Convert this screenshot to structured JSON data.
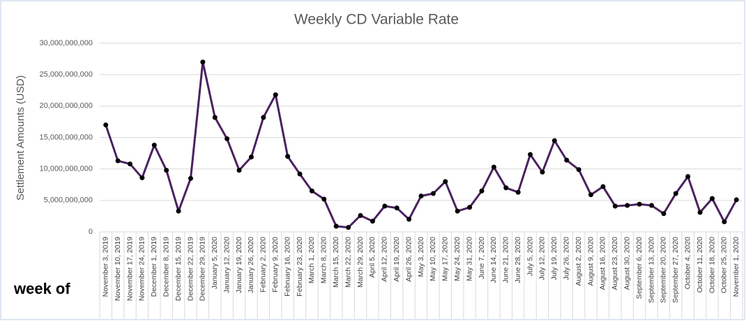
{
  "chart_data": {
    "type": "line",
    "title": "Weekly CD Variable Rate",
    "y_label": "Settlement Amounts (USD)",
    "annotation": "week of",
    "categories": [
      "November 3, 2019",
      "November 10, 2019",
      "November 17, 2019",
      "November 24, 2019",
      "December 1, 2019",
      "December 8, 2019",
      "December 15, 2019",
      "December 22, 2019",
      "December 29, 2019",
      "January 5, 2020",
      "January 12, 2020",
      "January 19, 2020",
      "January 26, 2020",
      "February 2, 2020",
      "February 9, 2020",
      "February 16, 2020",
      "February 23, 2020",
      "March 1, 2020",
      "March 8, 2020",
      "March 15, 2020",
      "March 22, 2020",
      "March 29, 2020",
      "April 5, 2020",
      "April 12, 2020",
      "April 19, 2020",
      "April 26, 2020",
      "May 3, 2020",
      "May 10, 2020",
      "May 17, 2020",
      "May 24, 2020",
      "May 31, 2020",
      "June 7, 2020",
      "June 14, 2020",
      "June 21, 2020",
      "June 28, 2020",
      "July 5, 2020",
      "July 12, 2020",
      "July 19, 2020",
      "July 26, 2020",
      "August 2, 2020",
      "August 9, 2020",
      "August 16, 2020",
      "August 23, 2020",
      "August 30, 2020",
      "September 6, 2020",
      "September 13, 2020",
      "September 20, 2020",
      "September 27, 2020",
      "October 4, 2020",
      "October 11, 2020",
      "October 18, 2020",
      "October 25, 2020",
      "November 1, 2020"
    ],
    "series": [
      {
        "name": "Settlement Amounts",
        "color": "#4b2160",
        "values": [
          17000000000,
          11300000000,
          10800000000,
          8600000000,
          13800000000,
          9800000000,
          3300000000,
          8500000000,
          27000000000,
          18200000000,
          14800000000,
          9800000000,
          11900000000,
          18200000000,
          21800000000,
          12000000000,
          9200000000,
          6500000000,
          5200000000,
          900000000,
          700000000,
          2600000000,
          1700000000,
          4100000000,
          3800000000,
          2000000000,
          5700000000,
          6100000000,
          8000000000,
          3300000000,
          3900000000,
          6500000000,
          10300000000,
          7000000000,
          6300000000,
          12300000000,
          9500000000,
          14500000000,
          11400000000,
          9900000000,
          5900000000,
          7200000000,
          4100000000,
          4200000000,
          4400000000,
          4200000000,
          2900000000,
          6100000000,
          8800000000,
          3100000000,
          5300000000,
          1600000000,
          5100000000
        ]
      }
    ],
    "ylim": [
      0,
      30000000000
    ],
    "yticks": [
      0,
      {
        "value": 5000000000,
        "label": "5,000,000,000"
      },
      {
        "value": 10000000000,
        "label": "10,000,000,000"
      },
      {
        "value": 15000000000,
        "label": "15,000,000,000"
      },
      {
        "value": 20000000000,
        "label": "20,000,000,000"
      },
      {
        "value": 25000000000,
        "label": "25,000,000,000"
      },
      {
        "value": 30000000000,
        "label": "30,000,000,000"
      }
    ],
    "grid": true
  }
}
